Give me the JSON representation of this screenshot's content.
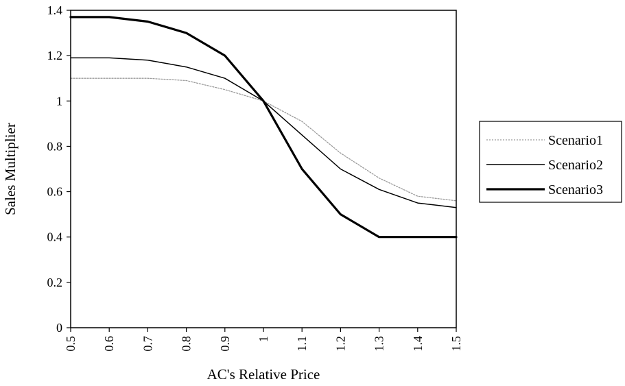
{
  "chart_data": {
    "type": "line",
    "title": "",
    "xlabel": "AC's Relative Price",
    "ylabel": "Sales Multiplier",
    "xlim": [
      0.5,
      1.5
    ],
    "ylim": [
      0,
      1.4
    ],
    "x_ticks": [
      "0.5",
      "0.6",
      "0.7",
      "0.8",
      "0.9",
      "1",
      "1.1",
      "1.2",
      "1.3",
      "1.4",
      "1.5"
    ],
    "y_ticks": [
      "0",
      "0.2",
      "0.4",
      "0.6",
      "0.8",
      "1",
      "1.2",
      "1.4"
    ],
    "grid": false,
    "legend_position": "right",
    "x": [
      0.5,
      0.6,
      0.7,
      0.8,
      0.9,
      1.0,
      1.1,
      1.2,
      1.3,
      1.4,
      1.5
    ],
    "series": [
      {
        "name": "Scenario1",
        "values": [
          1.1,
          1.1,
          1.1,
          1.09,
          1.05,
          1.0,
          0.91,
          0.77,
          0.66,
          0.58,
          0.56
        ],
        "color": "#9a9a9a",
        "style": "dotted-thin"
      },
      {
        "name": "Scenario2",
        "values": [
          1.19,
          1.19,
          1.18,
          1.15,
          1.1,
          1.0,
          0.85,
          0.7,
          0.61,
          0.55,
          0.53
        ],
        "color": "#000000",
        "style": "solid-thin"
      },
      {
        "name": "Scenario3",
        "values": [
          1.37,
          1.37,
          1.35,
          1.3,
          1.2,
          1.0,
          0.7,
          0.5,
          0.4,
          0.4,
          0.4
        ],
        "color": "#000000",
        "style": "solid-thick"
      }
    ]
  }
}
